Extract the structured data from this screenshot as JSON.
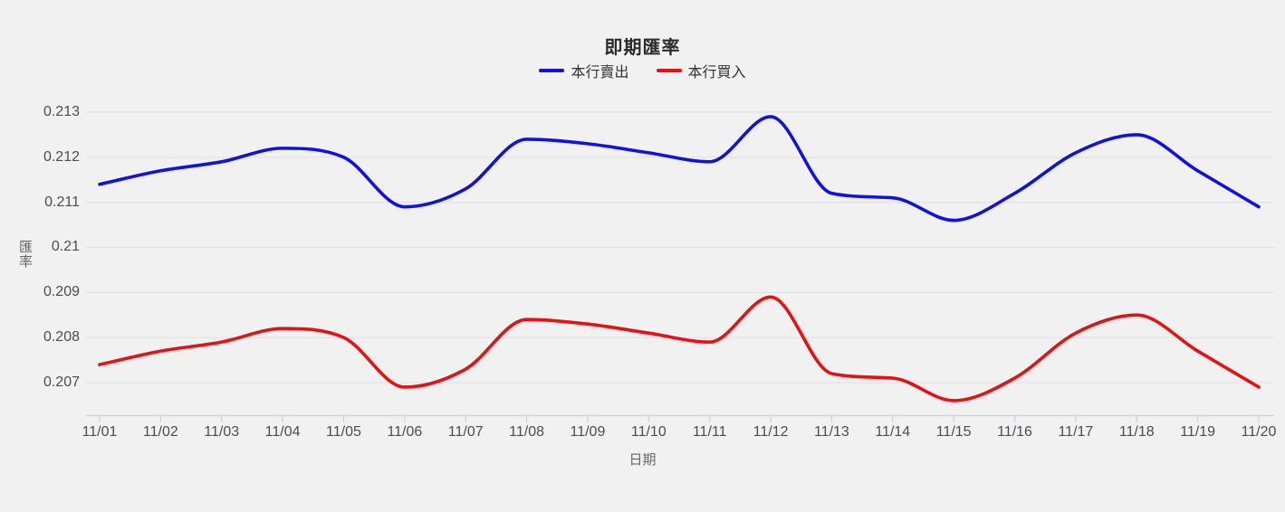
{
  "chart_data": {
    "type": "line",
    "title": "即期匯率",
    "xlabel": "日期",
    "ylabel": "匯率",
    "categories": [
      "11/01",
      "11/02",
      "11/03",
      "11/04",
      "11/05",
      "11/06",
      "11/07",
      "11/08",
      "11/09",
      "11/10",
      "11/11",
      "11/12",
      "11/13",
      "11/14",
      "11/15",
      "11/16",
      "11/17",
      "11/18",
      "11/19",
      "11/20"
    ],
    "series": [
      {
        "name": "本行賣出",
        "color": "#1010e8",
        "values": [
          0.2114,
          0.2117,
          0.2119,
          0.2122,
          0.212,
          0.2109,
          0.2113,
          0.2124,
          0.2123,
          0.2121,
          0.2119,
          0.2129,
          0.2112,
          0.2111,
          0.2106,
          0.2112,
          0.2121,
          0.2125,
          0.2117,
          0.2109
        ]
      },
      {
        "name": "本行買入",
        "color": "#e81010",
        "values": [
          0.2074,
          0.2077,
          0.2079,
          0.2082,
          0.208,
          0.2069,
          0.2073,
          0.2084,
          0.2083,
          0.2081,
          0.2079,
          0.2089,
          0.2072,
          0.2071,
          0.2066,
          0.2071,
          0.2081,
          0.2085,
          0.2077,
          0.2069
        ]
      }
    ],
    "y_ticks": [
      0.213,
      0.212,
      0.211,
      0.21,
      0.209,
      0.208,
      0.207
    ],
    "y_tick_labels": [
      "0.213",
      "0.212",
      "0.211",
      "0.21",
      "0.209",
      "0.208",
      "0.207"
    ],
    "ylim": [
      0.2063,
      0.2133
    ],
    "grid": true,
    "legend_position": "top",
    "line_smoothing": "monotone",
    "colors": {
      "background": "#f1f1f2",
      "gridline": "#e0e0e1",
      "axis": "#c9d4e3",
      "tick_text": "#4d4d4d"
    }
  }
}
